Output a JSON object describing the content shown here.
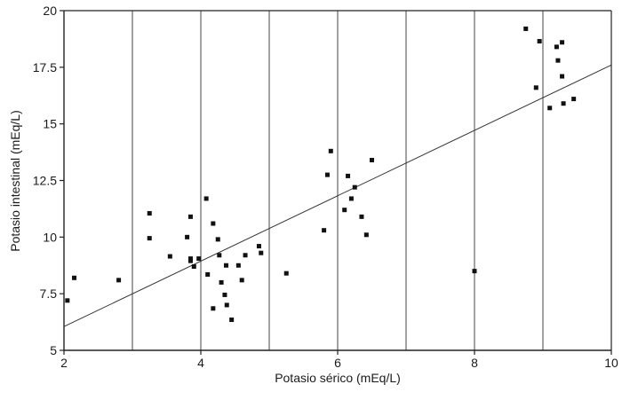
{
  "chart_data": {
    "type": "scatter",
    "title": "",
    "xlabel": "Potasio sérico (mEq/L)",
    "ylabel": "Potasio intestinal (mEq/L)",
    "xlim": [
      2,
      10
    ],
    "ylim": [
      5,
      20
    ],
    "grid": true,
    "x_ticks": [
      2,
      4,
      6,
      8,
      10
    ],
    "x_tick_labels": [
      "2",
      "4",
      "6",
      "8",
      "10"
    ],
    "x_gridlines": [
      3,
      4,
      5,
      6,
      7,
      8,
      9
    ],
    "y_ticks": [
      5,
      7.5,
      10,
      12.5,
      15,
      17.5,
      20
    ],
    "y_tick_labels": [
      "5",
      "7.5",
      "10",
      "12.5",
      "15",
      "17.5",
      "20"
    ],
    "colors": {
      "points": "#111111",
      "line": "#333333",
      "grid": "#555555",
      "axes": "#222222"
    },
    "series": [
      {
        "points": [
          [
            2.05,
            7.2
          ],
          [
            2.15,
            8.2
          ],
          [
            2.8,
            8.1
          ],
          [
            3.25,
            11.05
          ],
          [
            3.25,
            9.95
          ],
          [
            3.55,
            9.15
          ],
          [
            3.8,
            10.0
          ],
          [
            3.85,
            10.9
          ],
          [
            3.85,
            9.05
          ],
          [
            3.85,
            8.95
          ],
          [
            3.9,
            8.7
          ],
          [
            3.97,
            9.05
          ],
          [
            4.08,
            11.7
          ],
          [
            4.1,
            8.35
          ],
          [
            4.18,
            10.6
          ],
          [
            4.18,
            6.85
          ],
          [
            4.25,
            9.9
          ],
          [
            4.27,
            9.2
          ],
          [
            4.3,
            8.0
          ],
          [
            4.35,
            7.45
          ],
          [
            4.37,
            8.75
          ],
          [
            4.38,
            7.0
          ],
          [
            4.45,
            6.35
          ],
          [
            4.55,
            8.75
          ],
          [
            4.6,
            8.1
          ],
          [
            4.65,
            9.2
          ],
          [
            4.85,
            9.6
          ],
          [
            4.88,
            9.3
          ],
          [
            5.25,
            8.4
          ],
          [
            5.8,
            10.3
          ],
          [
            5.85,
            12.75
          ],
          [
            5.9,
            13.8
          ],
          [
            6.1,
            11.2
          ],
          [
            6.15,
            12.7
          ],
          [
            6.2,
            11.7
          ],
          [
            6.25,
            12.2
          ],
          [
            6.35,
            10.9
          ],
          [
            6.42,
            10.1
          ],
          [
            6.5,
            13.4
          ],
          [
            8.0,
            8.5
          ],
          [
            8.75,
            19.2
          ],
          [
            8.9,
            16.6
          ],
          [
            8.95,
            18.65
          ],
          [
            9.1,
            15.7
          ],
          [
            9.2,
            18.4
          ],
          [
            9.22,
            17.8
          ],
          [
            9.28,
            18.6
          ],
          [
            9.28,
            17.1
          ],
          [
            9.3,
            15.9
          ],
          [
            9.45,
            16.1
          ]
        ]
      }
    ],
    "fit_line": {
      "x": [
        2,
        10
      ],
      "y": [
        6.05,
        17.6
      ]
    }
  }
}
